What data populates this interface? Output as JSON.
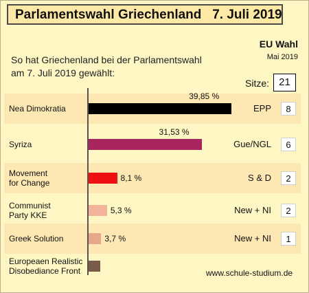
{
  "header": {
    "title": "Parlamentswahl Griechenland   7. Juli 2019",
    "intro_line1": "So hat Griechenland bei der Parlamentswahl",
    "intro_line2": "am 7. Juli 2019 gewählt:",
    "eu_title": "EU Wahl",
    "eu_date": "Mai 2019",
    "sitze_label": "Sitze:",
    "sitze_total": "21"
  },
  "source": "www.schule-studium.de",
  "colors": {
    "background": "#fef7c4",
    "band": "#fde8b4",
    "title_fill": "#fde9a6"
  },
  "chart_data": {
    "type": "bar",
    "orientation": "horizontal",
    "categories": [
      [
        "Nea Dimokratia"
      ],
      [
        "Syriza"
      ],
      [
        "Movement",
        "for Change"
      ],
      [
        "Communist",
        "Party KKE"
      ],
      [
        "Greek Solution"
      ],
      [
        "Europeaen Realistic",
        "Disobediance Front"
      ]
    ],
    "values": [
      39.85,
      31.53,
      8.1,
      5.3,
      3.7,
      null
    ],
    "value_labels": [
      "39,85 %",
      "31,53 %",
      "8,1 %",
      "5,3 %",
      "3,7 %",
      ""
    ],
    "colors": [
      "#000000",
      "#a8255e",
      "#ee1111",
      "#f2b39b",
      "#e8a68b",
      "#7a5a4b"
    ],
    "eu_groups": [
      "EPP",
      "Gue/NGL",
      "S & D",
      "New + NI",
      "New + NI",
      ""
    ],
    "eu_seats": [
      "8",
      "6",
      "2",
      "2",
      "1",
      ""
    ],
    "xlim": [
      0,
      45
    ]
  }
}
